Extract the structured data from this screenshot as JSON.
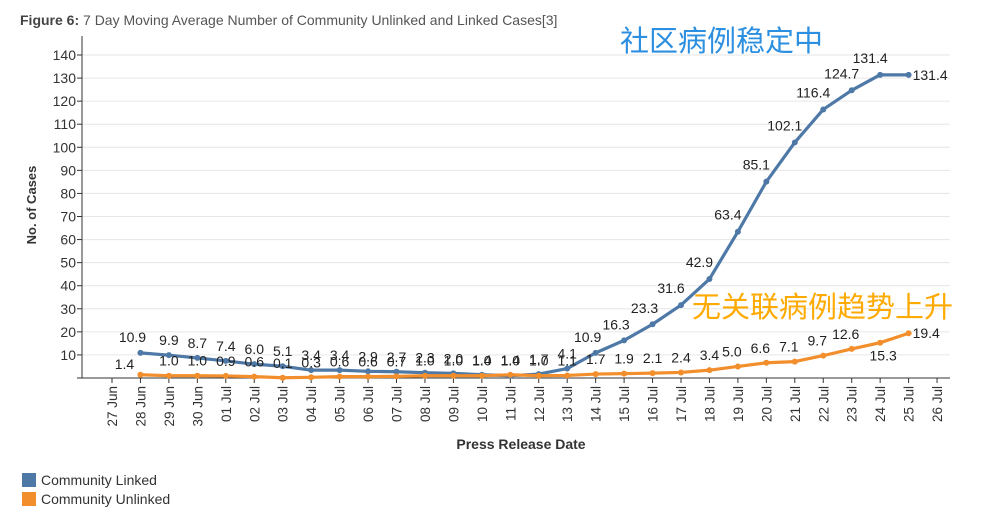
{
  "title": {
    "figure_label": "Figure 6:",
    "text": "7 Day Moving Average Number of Community Unlinked and Linked Cases[3]"
  },
  "annotations": {
    "linked_note": "社区病例稳定中",
    "unlinked_note": "无关联病例趋势上升"
  },
  "chart_data": {
    "type": "line",
    "title": "7 Day Moving Average Number of Community Unlinked and Linked Cases[3]",
    "xlabel": "Press Release Date",
    "ylabel": "No. of Cases",
    "ylim": [
      0,
      140
    ],
    "yticks": [
      10,
      20,
      30,
      40,
      50,
      60,
      70,
      80,
      90,
      100,
      110,
      120,
      130,
      140
    ],
    "grid": true,
    "categories": [
      "27 Jun",
      "28 Jun",
      "29 Jun",
      "30 Jun",
      "01 Jul",
      "02 Jul",
      "03 Jul",
      "04 Jul",
      "05 Jul",
      "06 Jul",
      "07 Jul",
      "08 Jul",
      "09 Jul",
      "10 Jul",
      "11 Jul",
      "12 Jul",
      "13 Jul",
      "14 Jul",
      "15 Jul",
      "16 Jul",
      "17 Jul",
      "18 Jul",
      "19 Jul",
      "20 Jul",
      "21 Jul",
      "22 Jul",
      "23 Jul",
      "24 Jul",
      "25 Jul",
      "26 Jul"
    ],
    "series": [
      {
        "name": "Community Linked",
        "color": "#4e79a7",
        "values": [
          null,
          10.9,
          9.9,
          8.7,
          7.4,
          6.0,
          5.1,
          3.4,
          3.4,
          2.9,
          2.7,
          2.3,
          2.0,
          1.4,
          1.0,
          1.7,
          4.1,
          10.9,
          16.3,
          23.3,
          31.6,
          42.9,
          63.4,
          85.1,
          102.1,
          116.4,
          124.7,
          131.4,
          131.4,
          null
        ],
        "labels": [
          null,
          "10.9",
          "9.9",
          "8.7",
          "7.4",
          "6.0",
          "5.1",
          "3.4",
          "3.4",
          "2.9",
          "2.7",
          "2.3",
          "2.0",
          "1.4",
          "1.0",
          "1.7",
          "4.1",
          "10.9",
          "16.3",
          "23.3",
          "31.6",
          "42.9",
          "63.4",
          "85.1",
          "102.1",
          "116.4",
          "124.7",
          "131.4",
          "131.4",
          null
        ]
      },
      {
        "name": "Community Unlinked",
        "color": "#f28e2b",
        "values": [
          null,
          1.4,
          1.0,
          1.0,
          0.9,
          0.6,
          0.1,
          0.3,
          0.6,
          0.6,
          0.7,
          1.0,
          1.0,
          1.0,
          1.4,
          1.0,
          1.1,
          1.7,
          1.9,
          2.1,
          2.4,
          3.4,
          5.0,
          6.6,
          7.1,
          9.7,
          12.6,
          15.3,
          19.4,
          null
        ],
        "labels": [
          null,
          "1.4",
          "1.0",
          "1.0",
          "0.9",
          "0.6",
          "0.1",
          "0.3",
          "0.6",
          "0.6",
          "0.7",
          "1.0",
          "1.0",
          "1.0",
          "1.4",
          "1.0",
          "1.1",
          "1.7",
          "1.9",
          "2.1",
          "2.4",
          "3.4",
          "5.0",
          "6.6",
          "7.1",
          "9.7",
          "12.6",
          "15.3",
          "19.4",
          null
        ]
      }
    ]
  },
  "legend": [
    {
      "label": "Community Linked",
      "color": "#4e79a7"
    },
    {
      "label": "Community Unlinked",
      "color": "#f28e2b"
    }
  ]
}
